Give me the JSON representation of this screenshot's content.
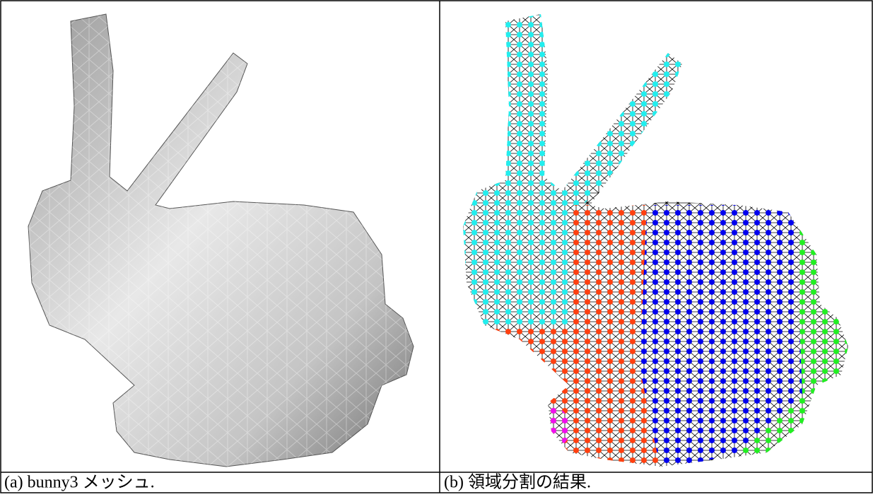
{
  "figure": {
    "panels": [
      {
        "caption": "(a) bunny3 メッシュ."
      },
      {
        "caption": "(b) 領域分割の結果."
      }
    ]
  }
}
